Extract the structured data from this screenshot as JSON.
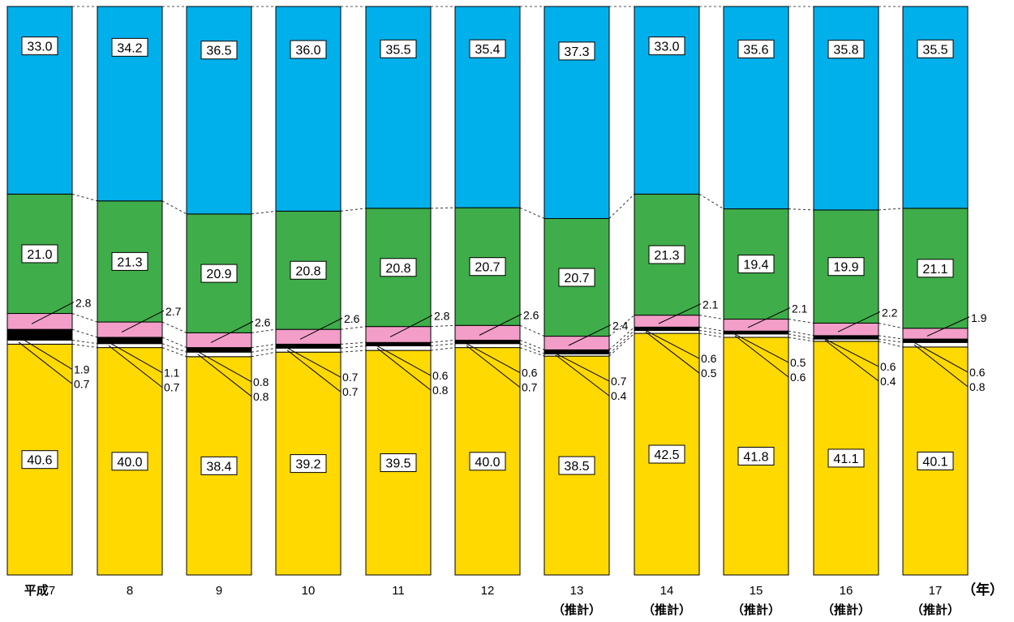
{
  "chart_data": {
    "type": "bar",
    "stacked": true,
    "percent_scale": true,
    "categories": [
      "平成7",
      "8",
      "9",
      "10",
      "11",
      "12",
      "13",
      "14",
      "15",
      "16",
      "17"
    ],
    "estimate_flags": [
      false,
      false,
      false,
      false,
      false,
      false,
      true,
      true,
      true,
      true,
      true
    ],
    "estimate_label": "（推計）",
    "year_unit_label": "（年）",
    "ylim": [
      0,
      100
    ],
    "series": [
      {
        "color": "#ffd900",
        "values": [
          40.6,
          40.0,
          38.4,
          39.2,
          39.5,
          40.0,
          38.5,
          42.5,
          41.8,
          41.1,
          40.1
        ]
      },
      {
        "color": "#ffffff",
        "values": [
          0.7,
          0.7,
          0.8,
          0.7,
          0.8,
          0.7,
          0.4,
          0.5,
          0.6,
          0.4,
          0.8
        ]
      },
      {
        "color": "#000000",
        "values": [
          1.9,
          1.1,
          0.8,
          0.7,
          0.6,
          0.6,
          0.7,
          0.6,
          0.5,
          0.6,
          0.6
        ]
      },
      {
        "color": "#f29ec8",
        "values": [
          2.8,
          2.7,
          2.6,
          2.6,
          2.8,
          2.6,
          2.4,
          2.1,
          2.1,
          2.2,
          1.9
        ]
      },
      {
        "color": "#3fad4a",
        "values": [
          21.0,
          21.3,
          20.9,
          20.8,
          20.8,
          20.7,
          20.7,
          21.3,
          19.4,
          19.9,
          21.1
        ]
      },
      {
        "color": "#00b0eb",
        "values": [
          33.0,
          34.2,
          36.5,
          36.0,
          35.5,
          35.4,
          37.3,
          33.0,
          35.6,
          35.8,
          35.5
        ]
      }
    ],
    "value_labels": [
      [
        "40.6",
        "40.0",
        "38.4",
        "39.2",
        "39.5",
        "40.0",
        "38.5",
        "42.5",
        "41.8",
        "41.1",
        "40.1"
      ],
      [
        "0.7",
        "0.7",
        "0.8",
        "0.7",
        "0.8",
        "0.7",
        "0.4",
        "0.5",
        "0.6",
        "0.4",
        "0.8"
      ],
      [
        "1.9",
        "1.1",
        "0.8",
        "0.7",
        "0.6",
        "0.6",
        "0.7",
        "0.6",
        "0.5",
        "0.6",
        "0.6"
      ],
      [
        "2.8",
        "2.7",
        "2.6",
        "2.6",
        "2.8",
        "2.6",
        "2.4",
        "2.1",
        "2.1",
        "2.2",
        "1.9"
      ],
      [
        "21.0",
        "21.3",
        "20.9",
        "20.8",
        "20.8",
        "20.7",
        "20.7",
        "21.3",
        "19.4",
        "19.9",
        "21.1"
      ],
      [
        "33.0",
        "34.2",
        "36.5",
        "36.0",
        "35.5",
        "35.4",
        "37.3",
        "33.0",
        "35.6",
        "35.8",
        "35.5"
      ]
    ]
  }
}
